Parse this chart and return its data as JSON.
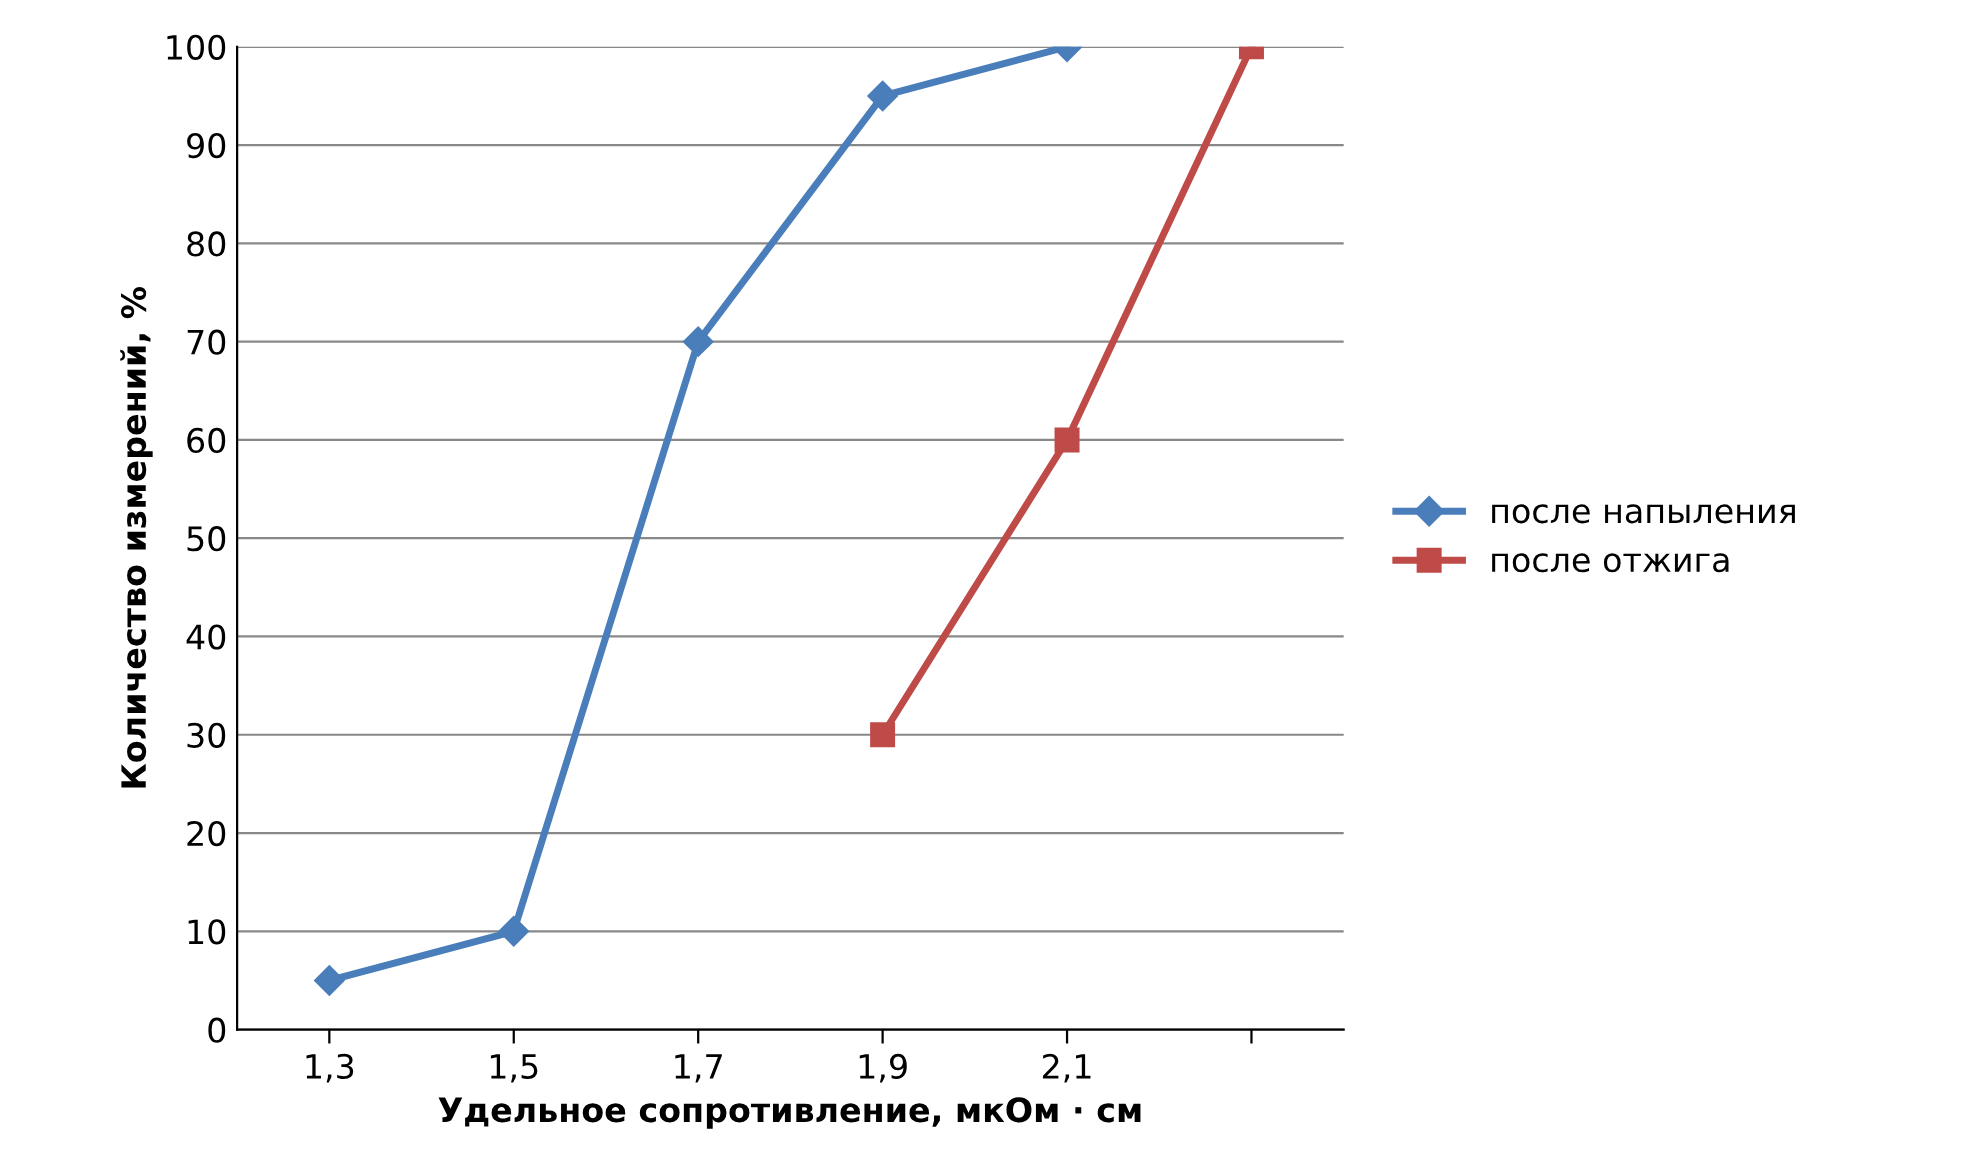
{
  "chart_data": {
    "type": "line",
    "xlabel": "Удельное сопротивление, мкОм · см",
    "ylabel": "Количество измерений, %",
    "categories": [
      "1,3",
      "1,5",
      "1,7",
      "1,9",
      "2,1",
      null
    ],
    "series": [
      {
        "name": "после напыления",
        "color": "#4a7ebb",
        "marker": "diamond",
        "values": [
          5,
          10,
          70,
          95,
          100,
          null
        ]
      },
      {
        "name": "после отжига",
        "color": "#be4b48",
        "marker": "square",
        "values": [
          null,
          null,
          null,
          30,
          60,
          100
        ]
      }
    ],
    "ylim": [
      0,
      100
    ],
    "yticks": [
      0,
      10,
      20,
      30,
      40,
      50,
      60,
      70,
      80,
      90,
      100
    ],
    "grid": "y",
    "legend": "right",
    "line_style": "solid"
  }
}
